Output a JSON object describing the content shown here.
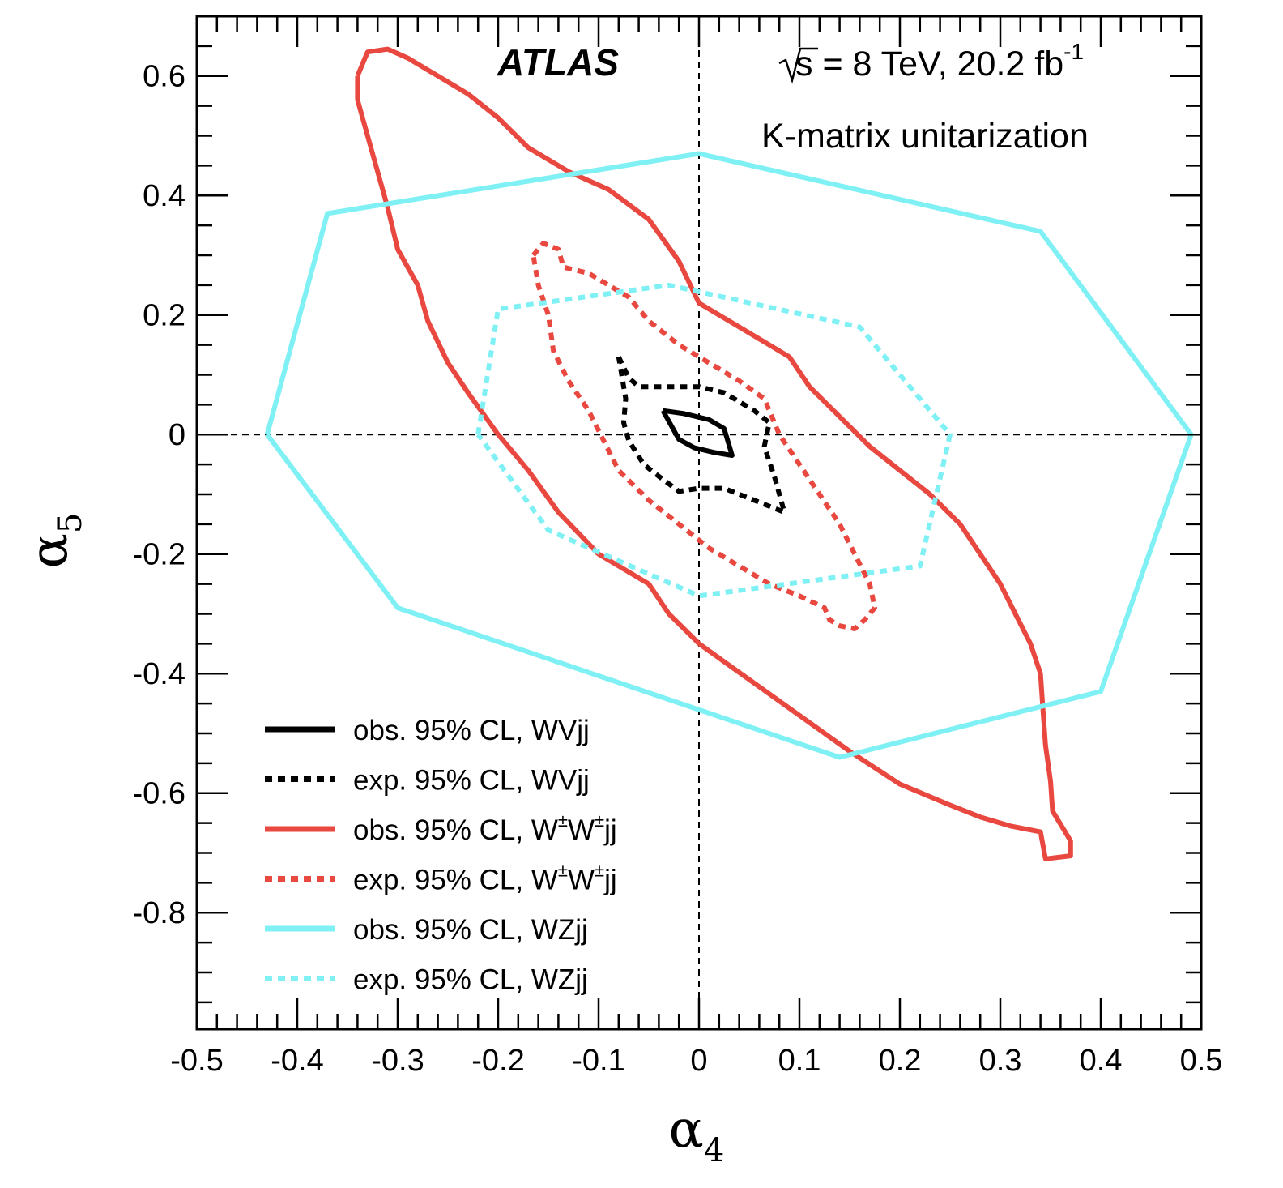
{
  "chart_data": {
    "type": "line",
    "experiment_label": "ATLAS",
    "annotations": {
      "energy": {
        "sqrt": "s",
        "rest": " = 8 TeV, 20.2 fb",
        "sup": "-1"
      },
      "method": "K-matrix unitarization"
    },
    "xlabel": {
      "symbol": "α",
      "sub": "4"
    },
    "ylabel": {
      "symbol": "α",
      "sub": "5"
    },
    "xlim": [
      -0.5,
      0.5
    ],
    "ylim": [
      -0.995,
      0.7
    ],
    "x_ticks": [
      -0.5,
      -0.4,
      -0.3,
      -0.2,
      -0.1,
      0,
      0.1,
      0.2,
      0.3,
      0.4,
      0.5
    ],
    "x_tick_labels": [
      "-0.5",
      "-0.4",
      "-0.3",
      "-0.2",
      "-0.1",
      "0",
      "0.1",
      "0.2",
      "0.3",
      "0.4",
      "0.5"
    ],
    "y_ticks": [
      -0.8,
      -0.6,
      -0.4,
      -0.2,
      0,
      0.2,
      0.4,
      0.6
    ],
    "y_tick_labels": [
      "-0.8",
      "-0.6",
      "-0.4",
      "-0.2",
      "0",
      "0.2",
      "0.4",
      "0.6"
    ],
    "reference_lines": {
      "x": 0,
      "y": 0,
      "style": "dashed"
    },
    "grid": false,
    "legend_position": "bottom-left",
    "colors": {
      "black": "#000000",
      "red": "#e8483f",
      "cyan": "#7ff0f4"
    },
    "series": [
      {
        "label_parts": [
          "obs. 95% CL, WVjj"
        ],
        "color": "#000000",
        "dashed": false,
        "points": [
          [
            -0.036,
            0.04
          ],
          [
            -0.015,
            0.035
          ],
          [
            0.01,
            0.025
          ],
          [
            0.025,
            0.01
          ],
          [
            0.033,
            -0.035
          ],
          [
            0.015,
            -0.03
          ],
          [
            -0.005,
            -0.022
          ],
          [
            -0.02,
            -0.008
          ],
          [
            -0.036,
            0.04
          ]
        ]
      },
      {
        "label_parts": [
          "exp. 95% CL, WVjj"
        ],
        "color": "#000000",
        "dashed": true,
        "points": [
          [
            -0.08,
            0.13
          ],
          [
            -0.07,
            0.095
          ],
          [
            -0.06,
            0.08
          ],
          [
            -0.025,
            0.08
          ],
          [
            0,
            0.08
          ],
          [
            0.025,
            0.07
          ],
          [
            0.055,
            0.04
          ],
          [
            0.07,
            0.02
          ],
          [
            0.065,
            -0.02
          ],
          [
            0.075,
            -0.07
          ],
          [
            0.085,
            -0.13
          ],
          [
            0.055,
            -0.11
          ],
          [
            0.025,
            -0.09
          ],
          [
            0,
            -0.09
          ],
          [
            -0.02,
            -0.095
          ],
          [
            -0.04,
            -0.07
          ],
          [
            -0.055,
            -0.05
          ],
          [
            -0.07,
            -0.01
          ],
          [
            -0.075,
            0.02
          ],
          [
            -0.073,
            0.06
          ],
          [
            -0.08,
            0.13
          ]
        ]
      },
      {
        "label_parts": [
          "obs. 95% CL, W",
          "±",
          "W",
          "±",
          "jj"
        ],
        "color": "#e8483f",
        "dashed": false,
        "points": [
          [
            -0.34,
            0.6
          ],
          [
            -0.33,
            0.64
          ],
          [
            -0.31,
            0.645
          ],
          [
            -0.29,
            0.63
          ],
          [
            -0.26,
            0.6
          ],
          [
            -0.23,
            0.57
          ],
          [
            -0.2,
            0.53
          ],
          [
            -0.17,
            0.48
          ],
          [
            -0.13,
            0.44
          ],
          [
            -0.09,
            0.41
          ],
          [
            -0.05,
            0.36
          ],
          [
            -0.02,
            0.29
          ],
          [
            0,
            0.22
          ],
          [
            0.03,
            0.19
          ],
          [
            0.06,
            0.16
          ],
          [
            0.09,
            0.13
          ],
          [
            0.11,
            0.08
          ],
          [
            0.14,
            0.03
          ],
          [
            0.17,
            -0.02
          ],
          [
            0.2,
            -0.06
          ],
          [
            0.23,
            -0.1
          ],
          [
            0.26,
            -0.15
          ],
          [
            0.28,
            -0.2
          ],
          [
            0.3,
            -0.25
          ],
          [
            0.315,
            -0.3
          ],
          [
            0.33,
            -0.35
          ],
          [
            0.34,
            -0.4
          ],
          [
            0.342,
            -0.45
          ],
          [
            0.345,
            -0.52
          ],
          [
            0.35,
            -0.58
          ],
          [
            0.352,
            -0.63
          ],
          [
            0.37,
            -0.68
          ],
          [
            0.37,
            -0.705
          ],
          [
            0.345,
            -0.71
          ],
          [
            0.34,
            -0.665
          ],
          [
            0.31,
            -0.655
          ],
          [
            0.28,
            -0.64
          ],
          [
            0.25,
            -0.62
          ],
          [
            0.2,
            -0.585
          ],
          [
            0.15,
            -0.53
          ],
          [
            0.1,
            -0.47
          ],
          [
            0.05,
            -0.41
          ],
          [
            0,
            -0.35
          ],
          [
            -0.03,
            -0.3
          ],
          [
            -0.05,
            -0.25
          ],
          [
            -0.1,
            -0.2
          ],
          [
            -0.14,
            -0.13
          ],
          [
            -0.17,
            -0.06
          ],
          [
            -0.2,
            0.0
          ],
          [
            -0.23,
            0.07
          ],
          [
            -0.25,
            0.12
          ],
          [
            -0.27,
            0.19
          ],
          [
            -0.28,
            0.25
          ],
          [
            -0.3,
            0.31
          ],
          [
            -0.31,
            0.38
          ],
          [
            -0.32,
            0.44
          ],
          [
            -0.33,
            0.5
          ],
          [
            -0.34,
            0.56
          ],
          [
            -0.34,
            0.6
          ]
        ]
      },
      {
        "label_parts": [
          "exp. 95% CL, W",
          "±",
          "W",
          "±",
          "jj"
        ],
        "color": "#e8483f",
        "dashed": true,
        "points": [
          [
            -0.165,
            0.3
          ],
          [
            -0.155,
            0.32
          ],
          [
            -0.14,
            0.31
          ],
          [
            -0.135,
            0.28
          ],
          [
            -0.11,
            0.27
          ],
          [
            -0.09,
            0.25
          ],
          [
            -0.07,
            0.23
          ],
          [
            -0.05,
            0.19
          ],
          [
            -0.02,
            0.15
          ],
          [
            0.01,
            0.12
          ],
          [
            0.04,
            0.09
          ],
          [
            0.065,
            0.06
          ],
          [
            0.08,
            0.0
          ],
          [
            0.1,
            -0.05
          ],
          [
            0.12,
            -0.1
          ],
          [
            0.14,
            -0.15
          ],
          [
            0.155,
            -0.2
          ],
          [
            0.17,
            -0.25
          ],
          [
            0.175,
            -0.29
          ],
          [
            0.165,
            -0.31
          ],
          [
            0.155,
            -0.325
          ],
          [
            0.14,
            -0.32
          ],
          [
            0.13,
            -0.31
          ],
          [
            0.125,
            -0.29
          ],
          [
            0.1,
            -0.27
          ],
          [
            0.07,
            -0.25
          ],
          [
            0.04,
            -0.22
          ],
          [
            0.01,
            -0.19
          ],
          [
            -0.02,
            -0.15
          ],
          [
            -0.05,
            -0.11
          ],
          [
            -0.08,
            -0.06
          ],
          [
            -0.095,
            -0.01
          ],
          [
            -0.11,
            0.04
          ],
          [
            -0.13,
            0.09
          ],
          [
            -0.145,
            0.14
          ],
          [
            -0.15,
            0.2
          ],
          [
            -0.16,
            0.25
          ],
          [
            -0.165,
            0.3
          ]
        ]
      },
      {
        "label_parts": [
          "obs. 95% CL, WZjj"
        ],
        "color": "#7ff0f4",
        "dashed": false,
        "points": [
          [
            -0.43,
            0.0
          ],
          [
            -0.37,
            0.37
          ],
          [
            0.0,
            0.47
          ],
          [
            0.34,
            0.34
          ],
          [
            0.49,
            0.0
          ],
          [
            0.4,
            -0.43
          ],
          [
            0.14,
            -0.54
          ],
          [
            -0.3,
            -0.29
          ],
          [
            -0.43,
            0.0
          ]
        ]
      },
      {
        "label_parts": [
          "exp. 95% CL, WZjj"
        ],
        "color": "#7ff0f4",
        "dashed": true,
        "points": [
          [
            -0.22,
            0.0
          ],
          [
            -0.2,
            0.21
          ],
          [
            -0.03,
            0.25
          ],
          [
            0.16,
            0.18
          ],
          [
            0.25,
            0.0
          ],
          [
            0.22,
            -0.22
          ],
          [
            0.0,
            -0.27
          ],
          [
            -0.15,
            -0.16
          ],
          [
            -0.22,
            0.0
          ]
        ]
      }
    ]
  }
}
